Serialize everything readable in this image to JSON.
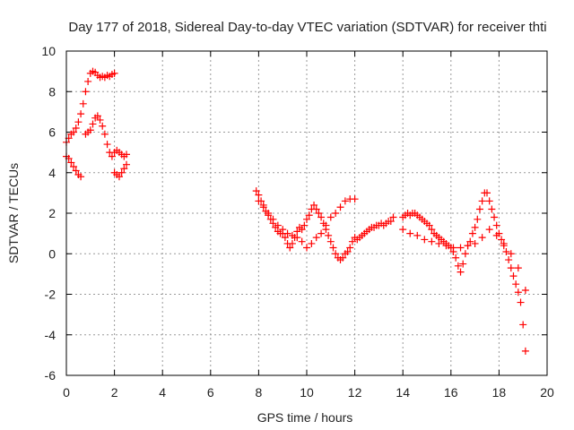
{
  "chart_data": {
    "type": "scatter",
    "title": "Day 177 of 2018, Sidereal Day-to-day VTEC variation (SDTVAR) for receiver thti",
    "xlabel": "GPS time / hours",
    "ylabel": "SDTVAR / TECUs",
    "xlim": [
      0,
      20
    ],
    "ylim": [
      -6,
      10
    ],
    "xticks": [
      0,
      2,
      4,
      6,
      8,
      10,
      12,
      14,
      16,
      18,
      20
    ],
    "yticks": [
      -6,
      -4,
      -2,
      0,
      2,
      4,
      6,
      8,
      10
    ],
    "grid": true,
    "marker": "plus",
    "color": "#ff0000",
    "series": [
      {
        "name": "segment-early-upper",
        "x": [
          0.0,
          0.1,
          0.2,
          0.3,
          0.4,
          0.5,
          0.6,
          0.7,
          0.8,
          0.9,
          1.0,
          1.1,
          1.2,
          1.3,
          1.4,
          1.5,
          1.6,
          1.7,
          1.8,
          1.9,
          2.0
        ],
        "y": [
          5.5,
          5.7,
          5.9,
          6.0,
          6.2,
          6.5,
          6.9,
          7.4,
          8.0,
          8.5,
          8.9,
          9.0,
          8.95,
          8.8,
          8.7,
          8.75,
          8.7,
          8.8,
          8.75,
          8.85,
          8.9
        ]
      },
      {
        "name": "segment-early-lower",
        "x": [
          0.0,
          0.1,
          0.2,
          0.3,
          0.4,
          0.5,
          0.6,
          0.8,
          0.9,
          1.0,
          1.1,
          1.2,
          1.3,
          1.4,
          1.5,
          1.6,
          1.7,
          1.8,
          1.9,
          2.0,
          2.1,
          2.2,
          2.3,
          2.4,
          2.5,
          2.0,
          2.1,
          2.2,
          2.3,
          2.4,
          2.5
        ],
        "y": [
          4.8,
          4.7,
          4.5,
          4.3,
          4.1,
          3.9,
          3.8,
          5.9,
          6.0,
          6.1,
          6.4,
          6.7,
          6.8,
          6.6,
          6.3,
          5.9,
          5.4,
          5.0,
          4.8,
          5.0,
          5.1,
          5.0,
          4.9,
          4.8,
          4.9,
          4.0,
          3.9,
          3.8,
          4.0,
          4.2,
          4.4
        ]
      },
      {
        "name": "segment-midday",
        "x": [
          7.9,
          8.0,
          8.1,
          8.2,
          8.3,
          8.4,
          8.5,
          8.6,
          8.7,
          8.8,
          8.9,
          9.0,
          9.1,
          9.2,
          9.3,
          9.4,
          9.5,
          9.6,
          9.7,
          9.8,
          9.9,
          10.0,
          10.1,
          10.2,
          10.3,
          10.4,
          10.5,
          10.6,
          10.7,
          10.8,
          10.9,
          11.0,
          11.1,
          11.2,
          11.3,
          11.4,
          11.5,
          11.6,
          11.7,
          11.8,
          11.9,
          12.0,
          12.1,
          12.2,
          12.3,
          12.4,
          12.5,
          12.6,
          12.7,
          12.8,
          12.9,
          13.0,
          13.1,
          13.2,
          13.3,
          13.4,
          13.5,
          13.6
        ],
        "y": [
          3.1,
          2.9,
          2.6,
          2.3,
          2.1,
          1.9,
          1.7,
          1.5,
          1.3,
          1.1,
          1.0,
          1.0,
          0.8,
          0.5,
          0.3,
          0.5,
          0.8,
          1.1,
          1.3,
          1.2,
          1.4,
          1.7,
          1.9,
          2.2,
          2.4,
          2.2,
          2.0,
          1.8,
          1.5,
          1.2,
          0.9,
          0.6,
          0.3,
          0.0,
          -0.2,
          -0.3,
          -0.2,
          0.0,
          0.1,
          0.3,
          0.6,
          0.8,
          0.7,
          0.8,
          0.9,
          1.0,
          1.1,
          1.2,
          1.3,
          1.3,
          1.4,
          1.4,
          1.5,
          1.4,
          1.5,
          1.6,
          1.6,
          1.8
        ]
      },
      {
        "name": "segment-midday-branch",
        "x": [
          8.0,
          8.2,
          8.4,
          8.6,
          8.8,
          9.0,
          9.2,
          9.4,
          9.6,
          9.8,
          10.0,
          10.2,
          10.4,
          10.6,
          10.8,
          11.0,
          11.2,
          11.4,
          11.6,
          11.8,
          12.0
        ],
        "y": [
          2.6,
          2.4,
          2.0,
          1.7,
          1.4,
          1.2,
          1.0,
          0.9,
          0.8,
          0.6,
          0.3,
          0.5,
          0.8,
          1.0,
          1.4,
          1.8,
          2.0,
          2.3,
          2.6,
          2.7,
          2.7
        ]
      },
      {
        "name": "segment-afternoon",
        "x": [
          14.0,
          14.1,
          14.2,
          14.3,
          14.4,
          14.5,
          14.6,
          14.7,
          14.8,
          14.9,
          15.0,
          15.1,
          15.2,
          15.3,
          15.4,
          15.5,
          15.6,
          15.7,
          15.8,
          15.9,
          16.0,
          16.1,
          16.2,
          16.3,
          16.4,
          16.5,
          16.6,
          16.7,
          16.8,
          16.9,
          17.0,
          17.1,
          17.2,
          17.3,
          17.4,
          17.5,
          17.6,
          17.7,
          17.8,
          17.9,
          18.0,
          18.1,
          18.2,
          18.3,
          18.4,
          18.5,
          18.6,
          18.7,
          18.8,
          18.9,
          19.0,
          19.1
        ],
        "y": [
          1.8,
          1.9,
          2.0,
          1.9,
          2.0,
          2.0,
          1.9,
          1.8,
          1.7,
          1.6,
          1.5,
          1.4,
          1.2,
          1.0,
          0.9,
          0.8,
          0.7,
          0.6,
          0.5,
          0.4,
          0.3,
          0.1,
          -0.2,
          -0.6,
          -0.9,
          -0.5,
          0.0,
          0.4,
          0.6,
          1.0,
          1.3,
          1.7,
          2.2,
          2.6,
          3.0,
          3.0,
          2.6,
          2.2,
          1.8,
          1.4,
          1.0,
          0.7,
          0.4,
          0.1,
          -0.3,
          -0.7,
          -1.1,
          -1.5,
          -1.9,
          -2.4,
          -3.5,
          -4.8
        ]
      },
      {
        "name": "segment-afternoon-branch",
        "x": [
          14.0,
          14.3,
          14.6,
          14.9,
          15.2,
          15.5,
          15.8,
          16.1,
          16.4,
          16.7,
          17.0,
          17.3,
          17.6,
          17.9,
          18.2,
          18.5,
          18.8,
          19.1
        ],
        "y": [
          1.2,
          1.0,
          0.9,
          0.7,
          0.6,
          0.5,
          0.4,
          0.3,
          0.3,
          0.4,
          0.5,
          0.8,
          1.2,
          0.9,
          0.5,
          0.0,
          -0.7,
          -1.8
        ]
      }
    ]
  }
}
